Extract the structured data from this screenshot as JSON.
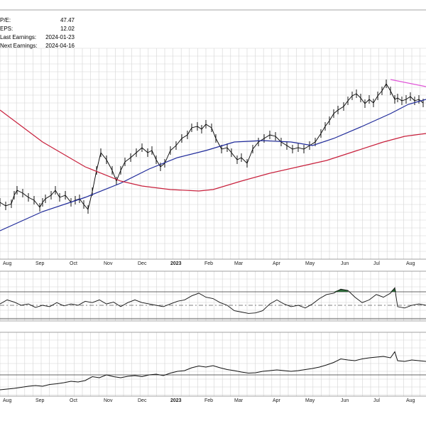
{
  "stats": [
    {
      "label": "P/E:",
      "value": "47.47"
    },
    {
      "label": "EPS:",
      "value": "12.02"
    },
    {
      "label": "Last Earnings:",
      "value": "2024-01-23"
    },
    {
      "label": "Next Earnings:",
      "value": "2024-04-16"
    }
  ],
  "colors": {
    "price": "#000000",
    "ma_short": "#1f2a9a",
    "ma_long": "#c8203c",
    "trendline": "#e055d8",
    "momentum_fill": "#2e6b3a",
    "grid": "#d4d4d4",
    "panel_border": "#888888"
  },
  "chart_data": [
    {
      "type": "line",
      "panel": "price",
      "title": "",
      "xlabel": "",
      "ylabel": "",
      "grid": true,
      "x_ticks": [
        "Aug",
        "Sep",
        "Oct",
        "Nov",
        "Dec",
        "2023",
        "Feb",
        "Mar",
        "Apr",
        "May",
        "Jun",
        "Jul",
        "Aug"
      ],
      "x_tick_bold": [
        false,
        false,
        false,
        false,
        false,
        true,
        false,
        false,
        false,
        false,
        false,
        false,
        false
      ],
      "x": [
        0,
        8,
        16,
        20,
        24,
        32,
        40,
        48,
        56,
        60,
        64,
        72,
        78,
        84,
        92,
        100,
        106,
        112,
        118,
        124,
        130,
        136,
        142,
        150,
        158,
        164,
        170,
        176,
        184,
        192,
        200,
        208,
        214,
        220,
        226,
        232,
        240,
        248,
        256,
        264,
        270,
        278,
        284,
        290,
        298,
        304,
        312,
        320,
        326,
        334,
        340,
        348,
        356,
        364,
        372,
        380,
        388,
        396,
        404,
        412,
        420,
        428,
        436,
        444,
        452,
        458,
        464,
        470,
        476,
        484,
        490,
        496,
        502,
        508,
        514,
        520,
        526,
        532,
        538,
        544,
        550,
        556,
        560,
        566,
        572,
        578,
        584,
        590,
        596
      ],
      "series": [
        {
          "role": "price",
          "values": [
            285,
            290,
            287,
            275,
            268,
            272,
            278,
            282,
            292,
            285,
            280,
            275,
            268,
            278,
            275,
            285,
            282,
            280,
            288,
            295,
            270,
            240,
            215,
            225,
            240,
            255,
            240,
            228,
            222,
            215,
            208,
            215,
            212,
            225,
            235,
            230,
            212,
            205,
            195,
            190,
            180,
            178,
            182,
            175,
            180,
            195,
            210,
            208,
            215,
            225,
            222,
            230,
            210,
            200,
            195,
            190,
            192,
            200,
            205,
            210,
            208,
            210,
            205,
            200,
            188,
            178,
            170,
            160,
            155,
            150,
            142,
            135,
            132,
            138,
            146,
            140,
            145,
            135,
            128,
            118,
            128,
            140,
            138,
            142,
            140,
            136,
            142,
            140,
            145
          ]
        },
        {
          "role": "ma_short",
          "x": [
            0,
            60,
            120,
            170,
            210,
            250,
            290,
            330,
            370,
            410,
            440,
            470,
            510,
            550,
            575,
            600
          ],
          "values": [
            325,
            298,
            278,
            258,
            238,
            222,
            212,
            200,
            198,
            200,
            205,
            195,
            178,
            160,
            147,
            140
          ]
        },
        {
          "role": "ma_long",
          "x": [
            0,
            60,
            120,
            170,
            200,
            240,
            280,
            300,
            340,
            380,
            420,
            460,
            500,
            540,
            570,
            600
          ],
          "values": [
            155,
            200,
            235,
            255,
            262,
            267,
            269,
            267,
            255,
            244,
            235,
            226,
            213,
            200,
            192,
            188
          ]
        },
        {
          "role": "trendline",
          "x": [
            550,
            600
          ],
          "values": [
            112,
            122
          ]
        }
      ]
    },
    {
      "type": "line",
      "panel": "oscillator",
      "title": "",
      "reference_levels": [
        "upper",
        "mid",
        "lower"
      ],
      "x": [
        0,
        10,
        20,
        30,
        40,
        50,
        60,
        70,
        80,
        90,
        100,
        110,
        120,
        130,
        140,
        150,
        160,
        170,
        180,
        190,
        200,
        210,
        220,
        230,
        240,
        250,
        260,
        270,
        280,
        290,
        300,
        310,
        320,
        330,
        340,
        350,
        360,
        370,
        380,
        390,
        400,
        410,
        420,
        430,
        440,
        450,
        460,
        470,
        480,
        490,
        500,
        510,
        520,
        530,
        540,
        550,
        556,
        560,
        570,
        580,
        590,
        600
      ],
      "values": [
        0.55,
        0.7,
        0.62,
        0.5,
        0.55,
        0.42,
        0.5,
        0.45,
        0.6,
        0.48,
        0.55,
        0.5,
        0.65,
        0.6,
        0.7,
        0.55,
        0.62,
        0.45,
        0.6,
        0.7,
        0.6,
        0.55,
        0.5,
        0.45,
        0.55,
        0.65,
        0.7,
        0.85,
        0.95,
        0.8,
        0.75,
        0.6,
        0.5,
        0.3,
        0.25,
        0.2,
        0.22,
        0.3,
        0.55,
        0.7,
        0.55,
        0.45,
        0.5,
        0.4,
        0.55,
        0.75,
        0.9,
        0.95,
        1.1,
        1.05,
        0.8,
        0.6,
        0.7,
        0.9,
        0.8,
        0.95,
        1.15,
        0.45,
        0.4,
        0.5,
        0.55,
        0.5
      ],
      "overbought_fill": [
        [
          270,
          290
        ],
        [
          460,
          490
        ],
        [
          548,
          558
        ]
      ]
    },
    {
      "type": "line",
      "panel": "relative",
      "title": "",
      "x": [
        0,
        10,
        20,
        30,
        40,
        50,
        60,
        70,
        80,
        90,
        100,
        110,
        120,
        130,
        140,
        150,
        160,
        170,
        180,
        190,
        200,
        210,
        220,
        230,
        240,
        250,
        260,
        270,
        280,
        290,
        300,
        310,
        320,
        330,
        340,
        350,
        360,
        370,
        380,
        390,
        400,
        410,
        420,
        430,
        440,
        450,
        460,
        470,
        480,
        490,
        500,
        510,
        520,
        530,
        540,
        550,
        556,
        560,
        570,
        580,
        590,
        600
      ],
      "values": [
        0.18,
        0.2,
        0.22,
        0.25,
        0.28,
        0.3,
        0.28,
        0.33,
        0.35,
        0.38,
        0.42,
        0.4,
        0.44,
        0.55,
        0.52,
        0.6,
        0.55,
        0.52,
        0.56,
        0.58,
        0.55,
        0.6,
        0.62,
        0.58,
        0.65,
        0.7,
        0.72,
        0.8,
        0.85,
        0.82,
        0.86,
        0.8,
        0.75,
        0.72,
        0.68,
        0.65,
        0.66,
        0.7,
        0.72,
        0.74,
        0.72,
        0.7,
        0.72,
        0.75,
        0.78,
        0.82,
        0.88,
        0.95,
        1.05,
        1.02,
        1.0,
        1.05,
        1.08,
        1.1,
        1.12,
        1.08,
        1.25,
        1.0,
        0.98,
        1.02,
        1.0,
        0.98
      ]
    }
  ]
}
